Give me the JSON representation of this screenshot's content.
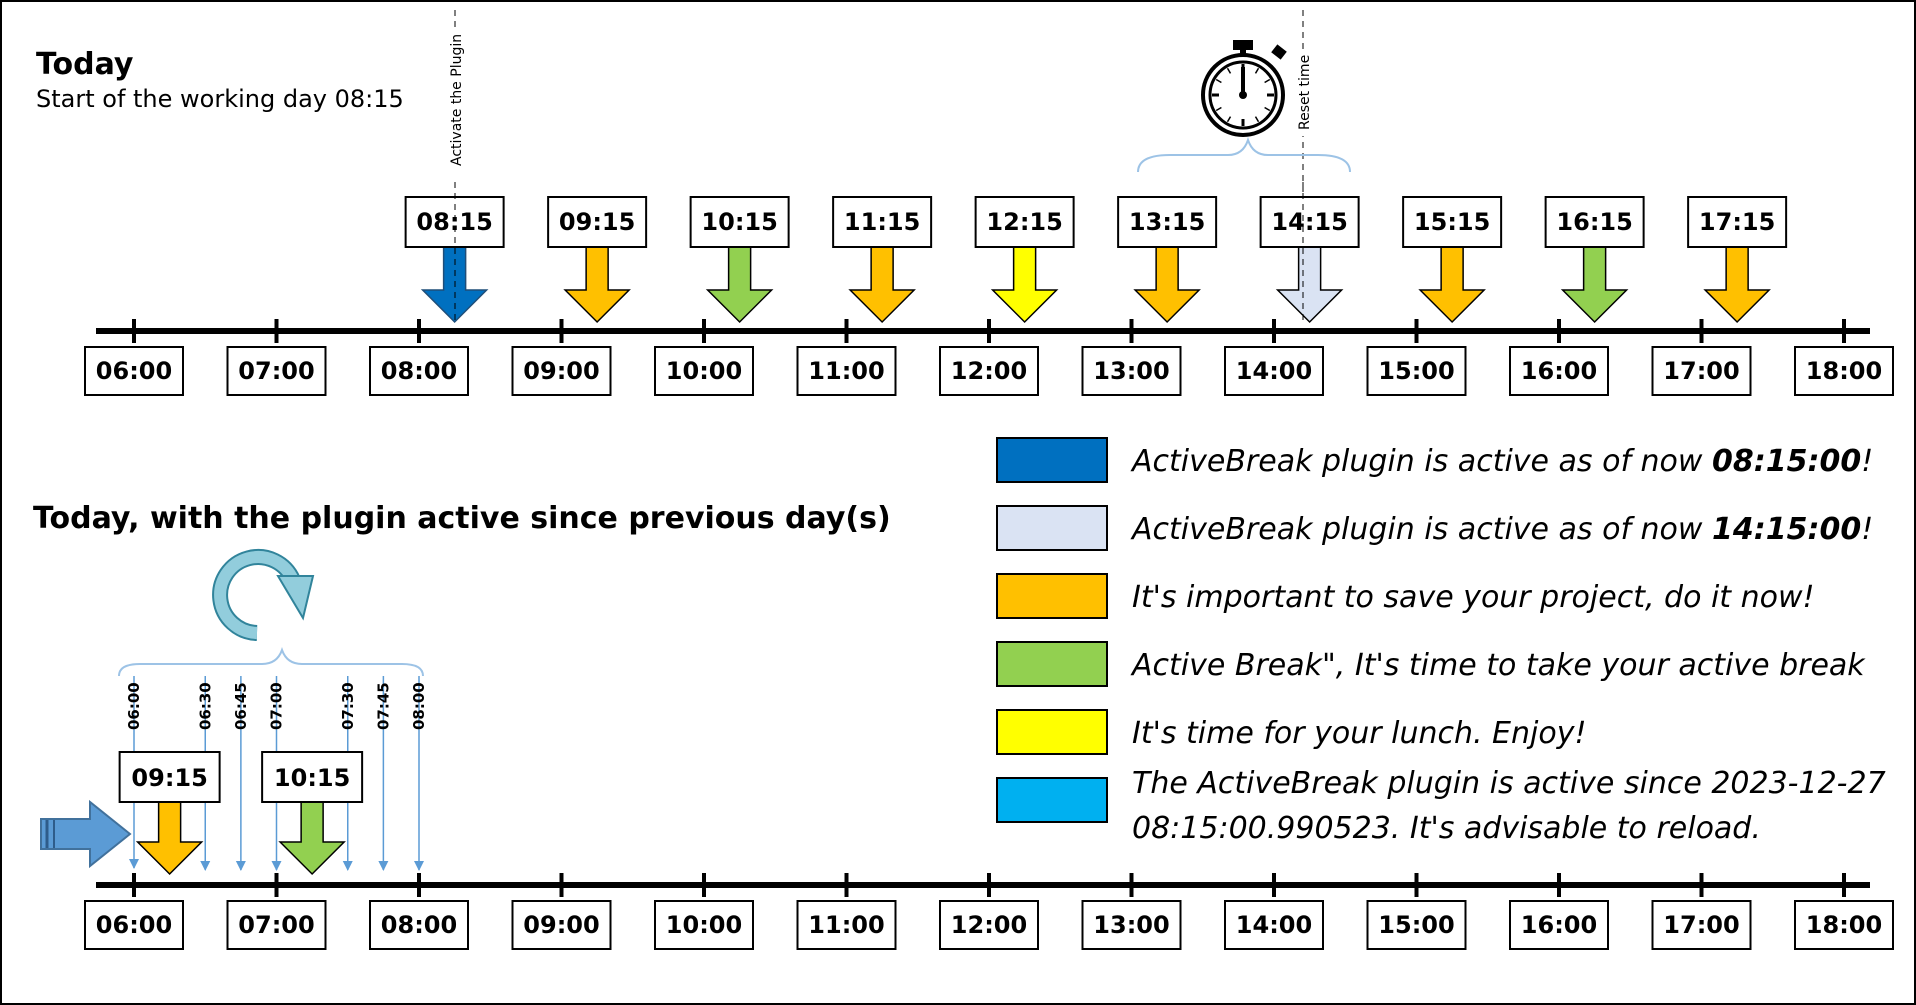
{
  "colors": {
    "dark_blue": "#0070c0",
    "light_blue_gray": "#dae3f3",
    "orange": "#ffc000",
    "green": "#92d050",
    "yellow": "#ffff00",
    "sky_blue": "#00b0f0",
    "arrow_stroke": "#385d8a",
    "thin_line": "#5b9bd5"
  },
  "section1": {
    "title": "Today",
    "subtitle": "Start of the working day 08:15",
    "activate_label": "Activate the Plugin",
    "reset_label": "Reset time",
    "stopwatch_icon": "stopwatch-icon",
    "hours": [
      "06:00",
      "07:00",
      "08:00",
      "09:00",
      "10:00",
      "11:00",
      "12:00",
      "13:00",
      "14:00",
      "15:00",
      "16:00",
      "17:00",
      "18:00"
    ],
    "events": [
      {
        "time": "08:15",
        "color": "#0070c0"
      },
      {
        "time": "09:15",
        "color": "#ffc000"
      },
      {
        "time": "10:15",
        "color": "#92d050"
      },
      {
        "time": "11:15",
        "color": "#ffc000"
      },
      {
        "time": "12:15",
        "color": "#ffff00"
      },
      {
        "time": "13:15",
        "color": "#ffc000"
      },
      {
        "time": "14:15",
        "color": "#dae3f3"
      },
      {
        "time": "15:15",
        "color": "#ffc000"
      },
      {
        "time": "16:15",
        "color": "#92d050"
      },
      {
        "time": "17:15",
        "color": "#ffc000"
      }
    ]
  },
  "section2": {
    "title": "Today, with the plugin active since previous day(s)",
    "reload_icon": "circular-arrow-icon",
    "hours": [
      "06:00",
      "07:00",
      "08:00",
      "09:00",
      "10:00",
      "11:00",
      "12:00",
      "13:00",
      "14:00",
      "15:00",
      "16:00",
      "17:00",
      "18:00"
    ],
    "ticks": [
      "06:00",
      "06:30",
      "06:45",
      "07:00",
      "07:30",
      "07:45",
      "08:00"
    ],
    "events": [
      {
        "time": "09:15",
        "color": "#ffc000"
      },
      {
        "time": "10:15",
        "color": "#92d050"
      }
    ]
  },
  "legend": [
    {
      "color": "#0070c0",
      "lines": [
        [
          "ActiveBreak plugin is active as of now ",
          "08:15:00",
          "!"
        ]
      ]
    },
    {
      "color": "#dae3f3",
      "lines": [
        [
          "ActiveBreak plugin is active as of now ",
          "14:15:00",
          "!"
        ]
      ]
    },
    {
      "color": "#ffc000",
      "lines": [
        [
          "It's important to save your project, do it now!",
          "",
          ""
        ]
      ]
    },
    {
      "color": "#92d050",
      "lines": [
        [
          "Active Break\", It's time to take your active break",
          "",
          ""
        ]
      ]
    },
    {
      "color": "#ffff00",
      "lines": [
        [
          "It's time for your lunch. Enjoy!",
          "",
          ""
        ]
      ]
    },
    {
      "color": "#00b0f0",
      "lines": [
        [
          "The ActiveBreak plugin is active since 2023-12-27",
          "",
          ""
        ],
        [
          "08:15:00.990523. It's advisable to reload.",
          "",
          ""
        ]
      ]
    }
  ]
}
